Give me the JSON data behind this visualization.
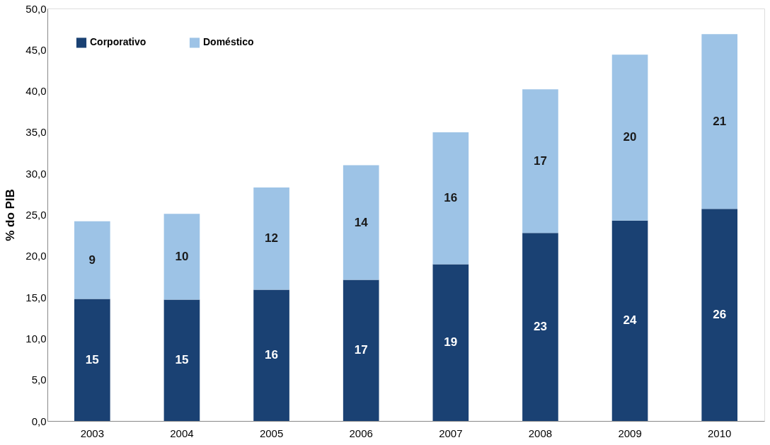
{
  "chart_data": {
    "type": "bar",
    "stacked": true,
    "ylabel": "% do PIB",
    "categories": [
      "2003",
      "2004",
      "2005",
      "2006",
      "2007",
      "2008",
      "2009",
      "2010"
    ],
    "series": [
      {
        "name": "Corporativo",
        "color": "#1a4173",
        "values": [
          14.8,
          14.7,
          15.9,
          17.1,
          19.0,
          22.8,
          24.3,
          25.7
        ],
        "value_labels": [
          "15",
          "15",
          "16",
          "17",
          "19",
          "23",
          "24",
          "26"
        ]
      },
      {
        "name": "Doméstico",
        "color": "#9dc3e6",
        "values": [
          9.4,
          10.4,
          12.4,
          13.9,
          16.0,
          17.4,
          20.1,
          21.2
        ],
        "value_labels": [
          "9",
          "10",
          "12",
          "14",
          "16",
          "17",
          "20",
          "21"
        ]
      }
    ],
    "ylim": [
      0,
      50
    ],
    "yticks": [
      {
        "value": 0,
        "label": "0,0"
      },
      {
        "value": 5,
        "label": "5,0"
      },
      {
        "value": 10,
        "label": "10,0"
      },
      {
        "value": 15,
        "label": "15,0"
      },
      {
        "value": 20,
        "label": "20,0"
      },
      {
        "value": 25,
        "label": "25,0"
      },
      {
        "value": 30,
        "label": "30,0"
      },
      {
        "value": 35,
        "label": "35,0"
      },
      {
        "value": 40,
        "label": "40,0"
      },
      {
        "value": 45,
        "label": "45,0"
      },
      {
        "value": 50,
        "label": "50,0"
      }
    ],
    "grid": false,
    "legend": "top left"
  }
}
